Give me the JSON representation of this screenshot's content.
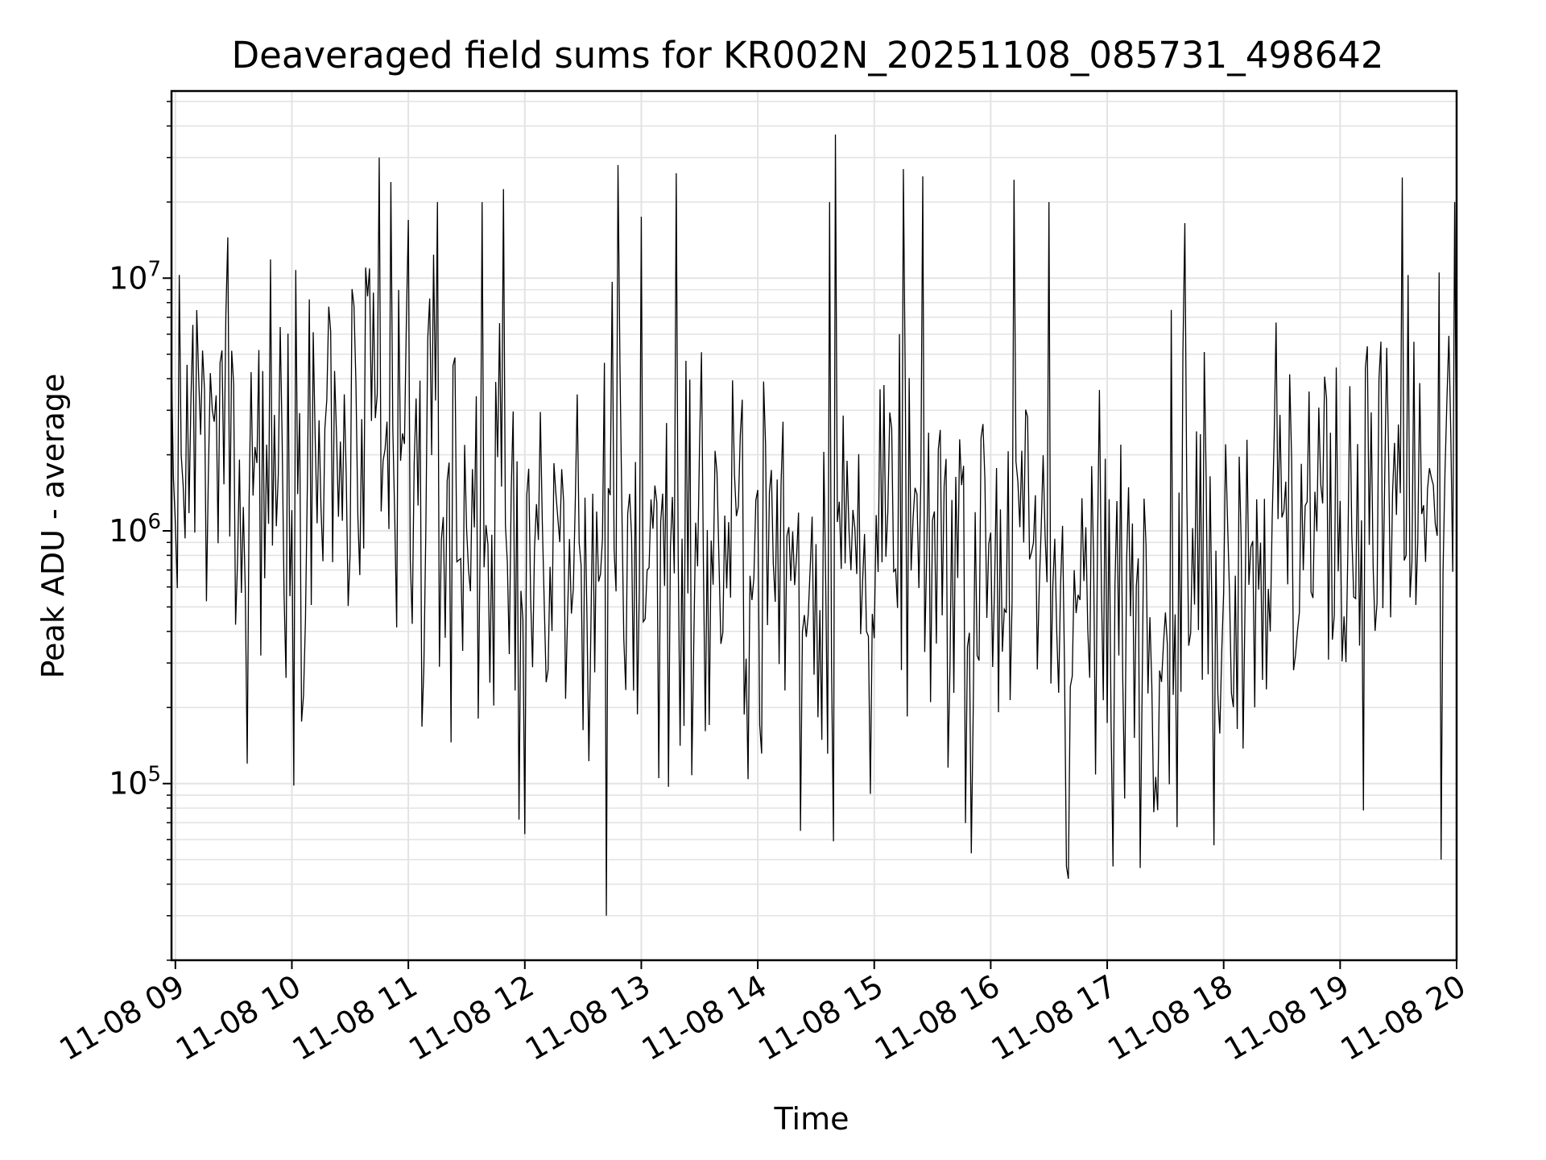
{
  "chart_data": {
    "type": "line",
    "title": "Deaveraged field sums for KR002N_20251108_085731_498642",
    "xlabel": "Time",
    "ylabel": "Peak ADU - average",
    "yscale": "log",
    "ylim": [
      20000,
      55000000
    ],
    "xlim": [
      "11-08 08:58",
      "11-08 20:00"
    ],
    "grid": true,
    "line_color": "#000000",
    "x_ticks": [
      "11-08 09",
      "11-08 10",
      "11-08 11",
      "11-08 12",
      "11-08 13",
      "11-08 14",
      "11-08 15",
      "11-08 16",
      "11-08 17",
      "11-08 18",
      "11-08 19",
      "11-08 20"
    ],
    "y_ticks": [
      {
        "base": "10",
        "exp": "5",
        "value": 100000
      },
      {
        "base": "10",
        "exp": "6",
        "value": 1000000
      },
      {
        "base": "10",
        "exp": "7",
        "value": 10000000
      }
    ],
    "series": [
      {
        "sampling_minutes": 1,
        "median_by_hour": {
          "09": 1500000,
          "10": 2000000,
          "11": 1500000,
          "12": 700000,
          "13": 800000,
          "14": 800000,
          "15": 800000,
          "16": 900000,
          "17": 450000,
          "18": 900000,
          "19": 1200000,
          "20": 1300000
        },
        "notable_peaks": [
          {
            "x": "11-08 09:02",
            "y": 10300000
          },
          {
            "x": "11-08 09:27",
            "y": 14500000
          },
          {
            "x": "11-08 10:45",
            "y": 30000000
          },
          {
            "x": "11-08 10:51",
            "y": 24000000
          },
          {
            "x": "11-08 11:00",
            "y": 17000000
          },
          {
            "x": "11-08 11:15",
            "y": 20000000
          },
          {
            "x": "11-08 11:38",
            "y": 20000000
          },
          {
            "x": "11-08 11:49",
            "y": 22500000
          },
          {
            "x": "11-08 12:48",
            "y": 28000000
          },
          {
            "x": "11-08 13:00",
            "y": 17500000
          },
          {
            "x": "11-08 13:18",
            "y": 26000000
          },
          {
            "x": "11-08 14:37",
            "y": 20000000
          },
          {
            "x": "11-08 14:40",
            "y": 37000000
          },
          {
            "x": "11-08 15:15",
            "y": 27000000
          },
          {
            "x": "11-08 16:12",
            "y": 24500000
          },
          {
            "x": "11-08 16:30",
            "y": 20000000
          },
          {
            "x": "11-08 17:40",
            "y": 16500000
          },
          {
            "x": "11-08 19:32",
            "y": 25000000
          },
          {
            "x": "11-08 19:59",
            "y": 20000000
          }
        ],
        "notable_troughs": [
          {
            "x": "11-08 09:37",
            "y": 120000
          },
          {
            "x": "11-08 11:57",
            "y": 72000
          },
          {
            "x": "11-08 12:42",
            "y": 30000
          },
          {
            "x": "11-08 14:22",
            "y": 65000
          },
          {
            "x": "11-08 15:50",
            "y": 53000
          },
          {
            "x": "11-08 16:40",
            "y": 42000
          },
          {
            "x": "11-08 17:03",
            "y": 47000
          },
          {
            "x": "11-08 17:55",
            "y": 57000
          },
          {
            "x": "11-08 19:52",
            "y": 50000
          }
        ]
      }
    ]
  }
}
